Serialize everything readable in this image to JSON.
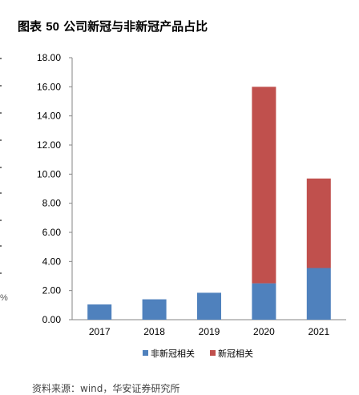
{
  "title": {
    "prefix": "图表",
    "number": "50",
    "text": "公司新冠与非新冠产品占比"
  },
  "source_note": "资料来源：wind，华安证券研究所",
  "edge_fragment": "%",
  "chart_data": {
    "type": "bar",
    "stacked": true,
    "title": "",
    "xlabel": "",
    "ylabel": "",
    "categories": [
      "2017",
      "2018",
      "2019",
      "2020",
      "2021"
    ],
    "series": [
      {
        "name": "非新冠相关",
        "color": "#4f81bd",
        "values": [
          1.05,
          1.4,
          1.85,
          2.5,
          3.55
        ]
      },
      {
        "name": "新冠相关",
        "color": "#c0504d",
        "values": [
          0,
          0,
          0,
          13.5,
          6.15
        ]
      }
    ],
    "ylim": [
      0,
      18
    ],
    "yticks": [
      "0.00",
      "2.00",
      "4.00",
      "6.00",
      "8.00",
      "10.00",
      "12.00",
      "14.00",
      "16.00",
      "18.00"
    ],
    "grid": false,
    "legend_position": "bottom"
  }
}
